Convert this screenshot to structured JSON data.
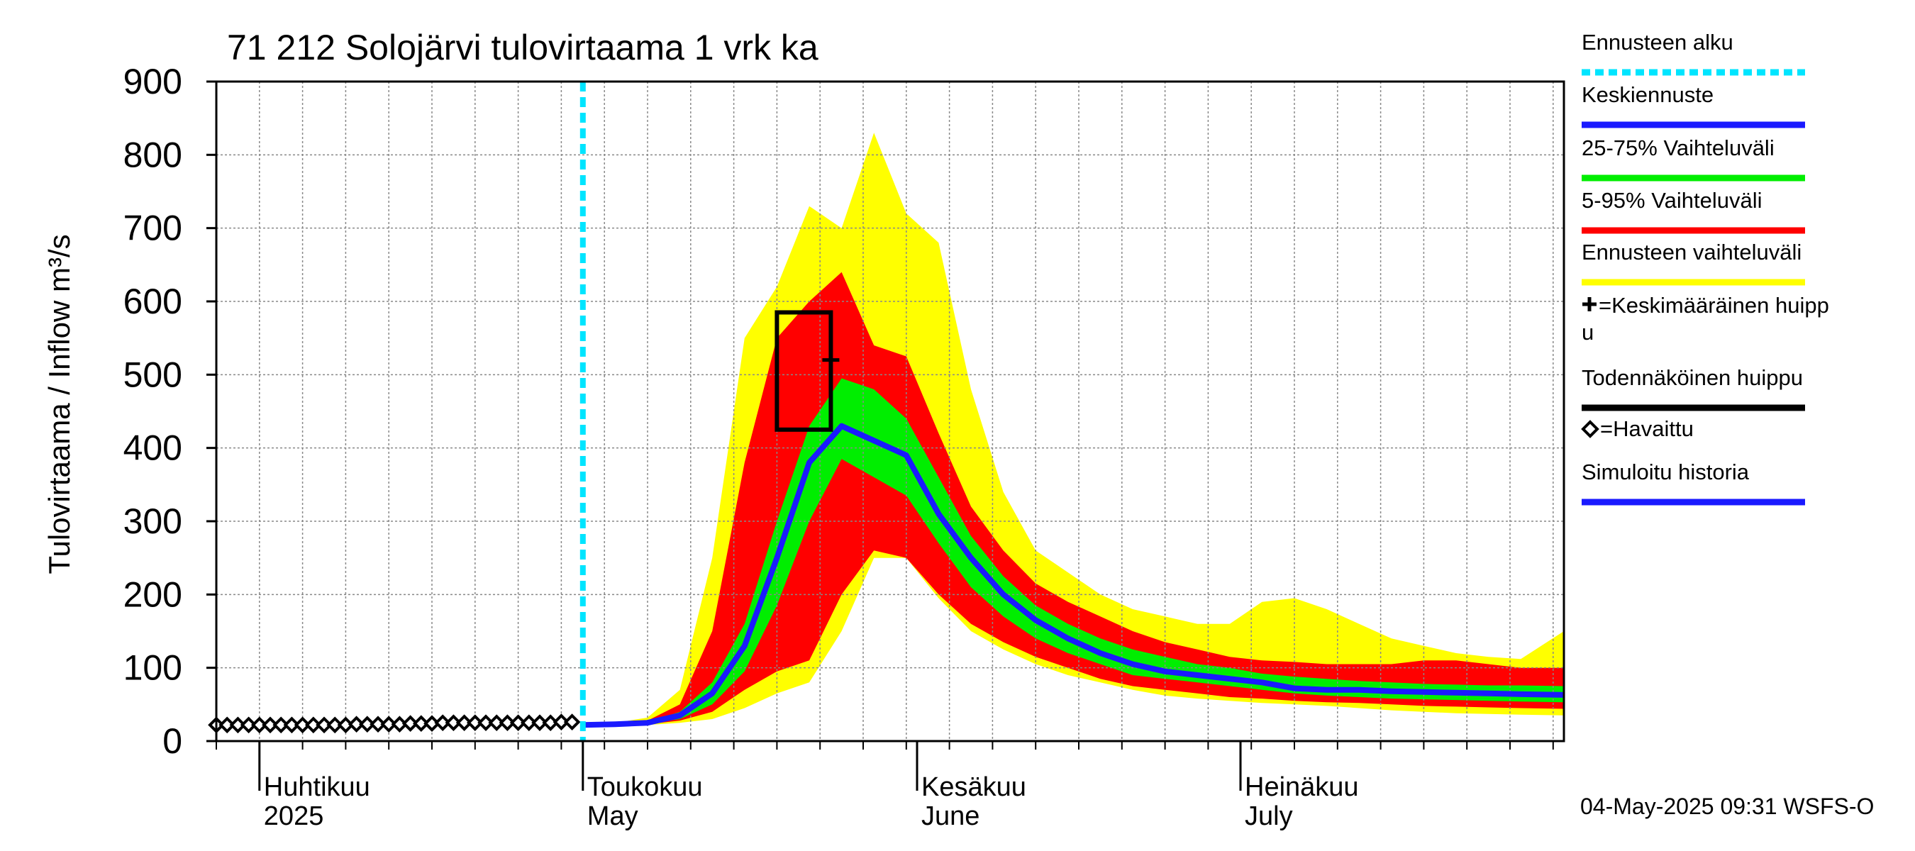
{
  "chart_data": {
    "type": "area",
    "title": "71 212 Solojärvi tulovirtaama 1 vrk ka",
    "ylabel": "Tulovirtaama / Inflow    m³/s",
    "ylim": [
      0,
      900
    ],
    "yticks": [
      0,
      100,
      200,
      300,
      400,
      500,
      600,
      700,
      800,
      900
    ],
    "xlim": [
      "2025-03-28",
      "2025-07-31"
    ],
    "grid": true,
    "legend_position": "right",
    "month_labels": [
      {
        "date": "2025-04-01",
        "line1": "Huhtikuu",
        "line2": "2025"
      },
      {
        "date": "2025-05-01",
        "line1": "Toukokuu",
        "line2": "May"
      },
      {
        "date": "2025-06-01",
        "line1": "Kesäkuu",
        "line2": "June"
      },
      {
        "date": "2025-07-01",
        "line1": "Heinäkuu",
        "line2": "July"
      }
    ],
    "forecast_start": "2025-05-01",
    "footer": "04-May-2025 09:31 WSFS-O",
    "colors": {
      "forecast_start": "#00e5ff",
      "mean": "#1a1aff",
      "band_25_75": "#00ee00",
      "band_5_95": "#ff0000",
      "band_full": "#ffff00",
      "peak_box": "#000000",
      "observed": "#000000"
    },
    "legend": [
      {
        "label": "Ennusteen alku",
        "key": "forecast_start",
        "style": "dotted"
      },
      {
        "label": "Keskiennuste",
        "key": "mean",
        "style": "line"
      },
      {
        "label": "25-75% Vaihteluväli",
        "key": "band_25_75",
        "style": "line"
      },
      {
        "label": "5-95% Vaihteluväli",
        "key": "band_5_95",
        "style": "line"
      },
      {
        "label": "Ennusteen vaihteluväli",
        "key": "band_full",
        "style": "line"
      },
      {
        "label": "=Keskimääräinen huipp",
        "label2": "u",
        "key": "peak_box",
        "style": "plus"
      },
      {
        "label": "Todennäköinen huippu",
        "key": "peak_box",
        "style": "line"
      },
      {
        "label": "=Havaittu",
        "key": "observed",
        "style": "diamond"
      },
      {
        "label": "Simuloitu historia",
        "key": "mean",
        "style": "line"
      }
    ],
    "observed": {
      "dates": [
        "2025-03-28",
        "2025-03-29",
        "2025-03-30",
        "2025-03-31",
        "2025-04-01",
        "2025-04-02",
        "2025-04-03",
        "2025-04-04",
        "2025-04-05",
        "2025-04-06",
        "2025-04-07",
        "2025-04-08",
        "2025-04-09",
        "2025-04-10",
        "2025-04-11",
        "2025-04-12",
        "2025-04-13",
        "2025-04-14",
        "2025-04-15",
        "2025-04-16",
        "2025-04-17",
        "2025-04-18",
        "2025-04-19",
        "2025-04-20",
        "2025-04-21",
        "2025-04-22",
        "2025-04-23",
        "2025-04-24",
        "2025-04-25",
        "2025-04-26",
        "2025-04-27",
        "2025-04-28",
        "2025-04-29",
        "2025-04-30"
      ],
      "values": [
        22,
        22,
        22,
        22,
        22,
        22,
        22,
        22,
        22,
        22,
        22,
        22,
        22,
        23,
        23,
        23,
        23,
        23,
        24,
        24,
        24,
        25,
        25,
        25,
        25,
        25,
        25,
        25,
        25,
        25,
        25,
        25,
        26,
        26
      ]
    },
    "forecast": {
      "dates": [
        "2025-05-01",
        "2025-05-04",
        "2025-05-07",
        "2025-05-10",
        "2025-05-13",
        "2025-05-16",
        "2025-05-19",
        "2025-05-22",
        "2025-05-25",
        "2025-05-28",
        "2025-05-31",
        "2025-06-03",
        "2025-06-06",
        "2025-06-09",
        "2025-06-12",
        "2025-06-15",
        "2025-06-18",
        "2025-06-21",
        "2025-06-24",
        "2025-06-27",
        "2025-06-30",
        "2025-07-03",
        "2025-07-06",
        "2025-07-09",
        "2025-07-12",
        "2025-07-15",
        "2025-07-18",
        "2025-07-21",
        "2025-07-24",
        "2025-07-27",
        "2025-07-31"
      ],
      "mean": [
        22,
        23,
        25,
        35,
        65,
        130,
        250,
        380,
        430,
        410,
        390,
        310,
        250,
        200,
        165,
        140,
        120,
        105,
        95,
        90,
        85,
        80,
        72,
        70,
        70,
        68,
        67,
        66,
        65,
        64,
        63
      ],
      "p25": [
        22,
        23,
        24,
        30,
        50,
        95,
        185,
        300,
        385,
        360,
        335,
        270,
        210,
        170,
        140,
        120,
        105,
        90,
        85,
        80,
        75,
        70,
        65,
        62,
        60,
        58,
        57,
        56,
        55,
        54,
        53
      ],
      "p75": [
        22,
        23,
        26,
        40,
        80,
        160,
        300,
        430,
        495,
        480,
        440,
        360,
        280,
        225,
        185,
        160,
        140,
        125,
        115,
        105,
        100,
        92,
        88,
        85,
        82,
        80,
        78,
        77,
        76,
        76,
        75
      ],
      "p5": [
        22,
        22,
        23,
        28,
        40,
        70,
        95,
        110,
        200,
        260,
        250,
        200,
        160,
        135,
        115,
        100,
        85,
        75,
        70,
        65,
        60,
        58,
        55,
        53,
        52,
        50,
        48,
        47,
        46,
        45,
        44
      ],
      "p95": [
        22,
        24,
        28,
        50,
        150,
        380,
        550,
        600,
        640,
        540,
        525,
        420,
        320,
        260,
        215,
        190,
        170,
        150,
        135,
        125,
        115,
        110,
        108,
        105,
        105,
        105,
        110,
        110,
        105,
        100,
        100
      ],
      "min": [
        22,
        22,
        22,
        25,
        30,
        45,
        65,
        80,
        150,
        250,
        250,
        195,
        150,
        125,
        105,
        90,
        80,
        70,
        62,
        58,
        55,
        52,
        50,
        48,
        45,
        42,
        40,
        38,
        37,
        36,
        35
      ],
      "max": [
        22,
        25,
        32,
        70,
        250,
        550,
        620,
        730,
        700,
        830,
        720,
        680,
        480,
        340,
        260,
        230,
        200,
        180,
        170,
        160,
        160,
        190,
        195,
        180,
        160,
        140,
        130,
        120,
        115,
        112,
        150
      ]
    },
    "mean_peak": {
      "date": "2025-05-24",
      "value": 520
    },
    "probable_peak": {
      "date_start": "2025-05-19",
      "date_end": "2025-05-24",
      "low": 425,
      "high": 585
    }
  }
}
